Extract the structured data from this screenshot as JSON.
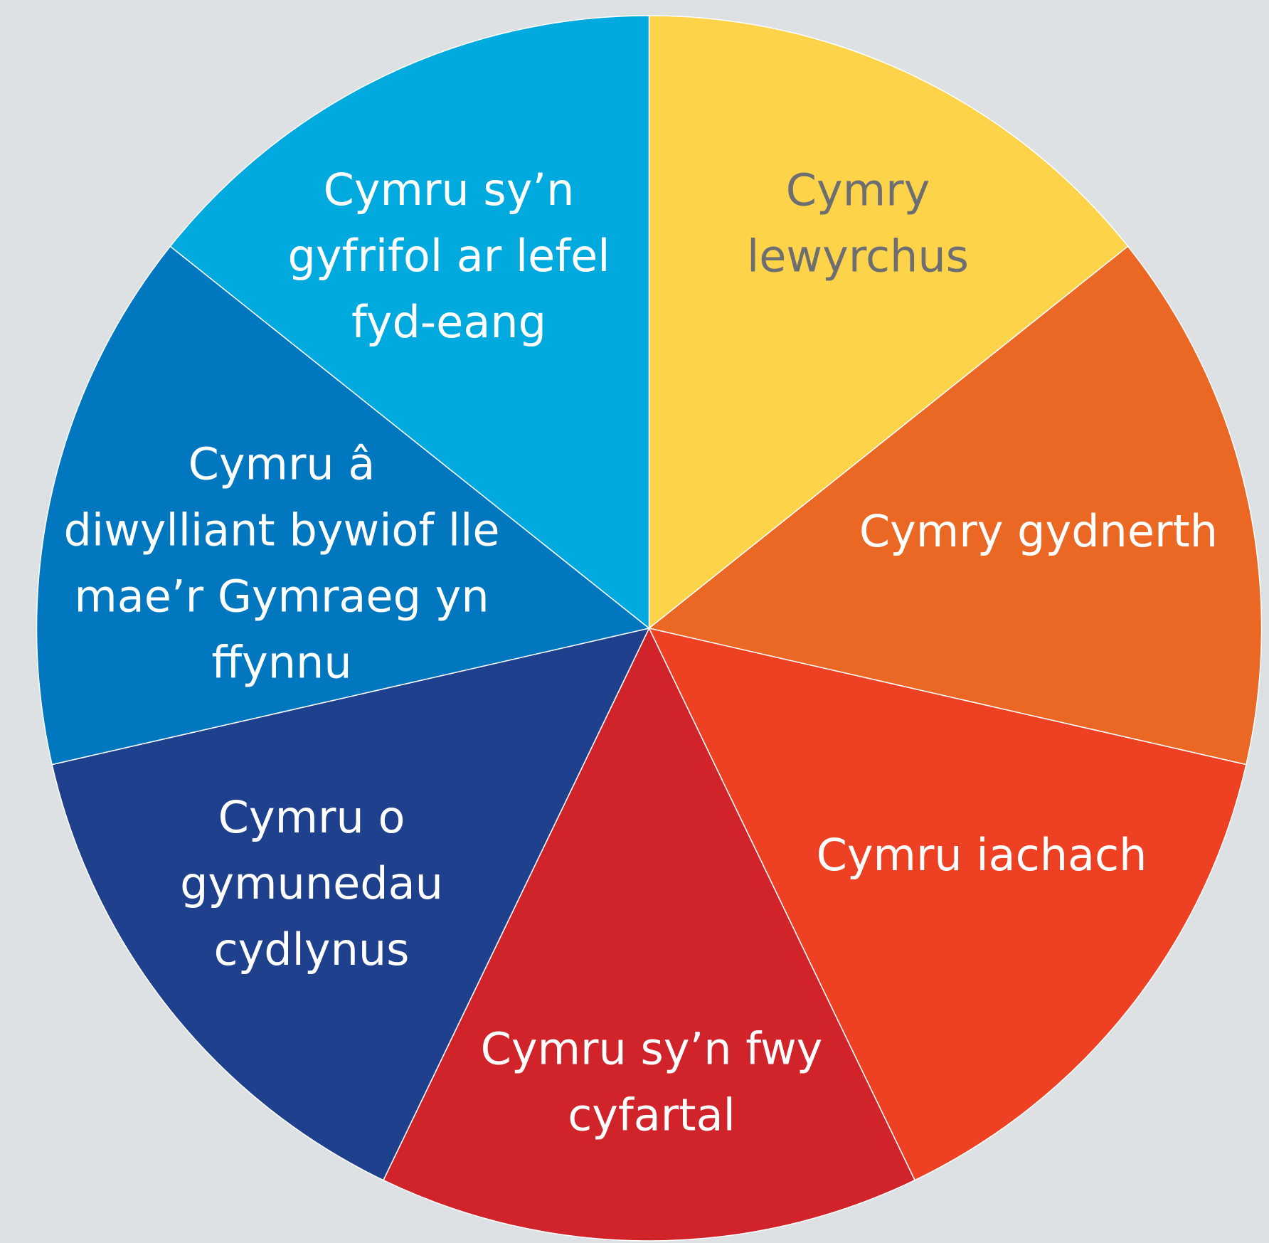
{
  "segments": [
    {
      "lines": [
        "Cymry",
        "lewyrchus"
      ],
      "color": "#fdd34a",
      "text_color": "#6d6e71"
    },
    {
      "lines": [
        "Cymry gydnerth"
      ],
      "color": "#ea6724",
      "text_color": "#ffffff"
    },
    {
      "lines": [
        "Cymru iachach"
      ],
      "color": "#ee4123",
      "text_color": "#ffffff"
    },
    {
      "lines": [
        "Cymru sy’n fwy",
        "cyfartal"
      ],
      "color": "#d0232a",
      "text_color": "#ffffff"
    },
    {
      "lines": [
        "Cymru o",
        "gymunedau",
        "cydlynus"
      ],
      "color": "#1f418d",
      "text_color": "#ffffff"
    },
    {
      "lines": [
        "Cymru â",
        "diwylliant bywiof lle",
        "mae’r Gymraeg yn",
        "ffynnu"
      ],
      "color": "#0077be",
      "text_color": "#ffffff"
    },
    {
      "lines": [
        "Cymru sy’n",
        "gyfrifol ar lefel",
        "fyd-eang"
      ],
      "color": "#00a9de",
      "text_color": "#ffffff"
    }
  ]
}
